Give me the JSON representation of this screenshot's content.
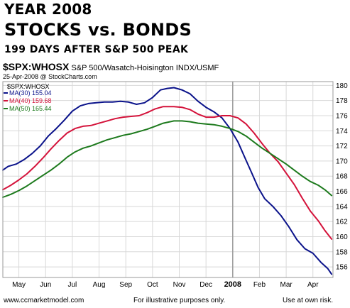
{
  "header": {
    "line1": "YEAR 2008",
    "line2": "STOCKS vs. BONDS",
    "line3": "199 DAYS AFTER S&P 500 PEAK"
  },
  "symbol_line": {
    "symbol": "$SPX:WHOSX",
    "description": "S&P 500/Wasatch-Hoisington INDX/USMF"
  },
  "date_line": "25-Apr-2008 @ StockCharts.com",
  "footer": {
    "left": "www.ccmarketmodel.com",
    "middle": "For illustrative purposes only.",
    "right": "Use at own risk."
  },
  "colors": {
    "ma30": "#0a128a",
    "ma40": "#d4123a",
    "ma50": "#1d7a1d",
    "grid": "#d8d8d8",
    "frame": "#999999"
  },
  "chart_data": {
    "type": "line",
    "legend_title": "$SPX:WHOSX",
    "legend_position": "top-left",
    "grid": true,
    "x_labels": [
      "May",
      "Jun",
      "Jul",
      "Aug",
      "Sep",
      "Oct",
      "Nov",
      "Dec",
      "2008",
      "Feb",
      "Mar",
      "Apr"
    ],
    "x_label_month_index": [
      1,
      2,
      3,
      4,
      5,
      6,
      7,
      8,
      9,
      10,
      11,
      12
    ],
    "x_range": [
      0.4,
      12.75
    ],
    "y_ticks": [
      156,
      158,
      160,
      162,
      164,
      166,
      168,
      170,
      172,
      174,
      176,
      178,
      180
    ],
    "ylim": [
      154.6,
      180.5
    ],
    "series": [
      {
        "name": "MA(30) 155.04",
        "color_key": "ma30",
        "points": [
          [
            0.4,
            168.8
          ],
          [
            0.6,
            169.3
          ],
          [
            0.9,
            169.6
          ],
          [
            1.2,
            170.2
          ],
          [
            1.5,
            171.0
          ],
          [
            1.8,
            172.0
          ],
          [
            2.1,
            173.3
          ],
          [
            2.4,
            174.3
          ],
          [
            2.7,
            175.4
          ],
          [
            3.0,
            176.6
          ],
          [
            3.3,
            177.3
          ],
          [
            3.6,
            177.6
          ],
          [
            3.9,
            177.7
          ],
          [
            4.2,
            177.8
          ],
          [
            4.5,
            177.8
          ],
          [
            4.8,
            177.9
          ],
          [
            5.1,
            177.8
          ],
          [
            5.4,
            177.5
          ],
          [
            5.7,
            177.7
          ],
          [
            6.0,
            178.4
          ],
          [
            6.3,
            179.4
          ],
          [
            6.55,
            179.6
          ],
          [
            6.8,
            179.7
          ],
          [
            7.1,
            179.4
          ],
          [
            7.4,
            178.9
          ],
          [
            7.7,
            177.9
          ],
          [
            8.0,
            177.1
          ],
          [
            8.3,
            176.5
          ],
          [
            8.6,
            175.7
          ],
          [
            8.9,
            174.3
          ],
          [
            9.2,
            172.5
          ],
          [
            9.45,
            170.5
          ],
          [
            9.7,
            168.5
          ],
          [
            9.95,
            166.5
          ],
          [
            10.2,
            165.0
          ],
          [
            10.5,
            164.0
          ],
          [
            10.8,
            162.8
          ],
          [
            11.1,
            161.3
          ],
          [
            11.4,
            159.6
          ],
          [
            11.7,
            158.4
          ],
          [
            12.0,
            157.8
          ],
          [
            12.3,
            156.6
          ],
          [
            12.55,
            155.8
          ],
          [
            12.7,
            155.04
          ]
        ]
      },
      {
        "name": "MA(40) 159.68",
        "color_key": "ma40",
        "points": [
          [
            0.4,
            166.2
          ],
          [
            0.7,
            166.8
          ],
          [
            1.0,
            167.5
          ],
          [
            1.3,
            168.3
          ],
          [
            1.6,
            169.3
          ],
          [
            1.9,
            170.4
          ],
          [
            2.2,
            171.6
          ],
          [
            2.5,
            172.7
          ],
          [
            2.8,
            173.7
          ],
          [
            3.1,
            174.3
          ],
          [
            3.4,
            174.6
          ],
          [
            3.7,
            174.7
          ],
          [
            4.0,
            175.0
          ],
          [
            4.3,
            175.3
          ],
          [
            4.6,
            175.6
          ],
          [
            4.9,
            175.8
          ],
          [
            5.2,
            175.9
          ],
          [
            5.5,
            176.0
          ],
          [
            5.8,
            176.4
          ],
          [
            6.1,
            176.9
          ],
          [
            6.4,
            177.2
          ],
          [
            6.8,
            177.2
          ],
          [
            7.1,
            177.1
          ],
          [
            7.4,
            176.8
          ],
          [
            7.7,
            176.2
          ],
          [
            8.0,
            175.8
          ],
          [
            8.3,
            175.8
          ],
          [
            8.6,
            176.0
          ],
          [
            8.9,
            176.0
          ],
          [
            9.2,
            175.7
          ],
          [
            9.5,
            174.9
          ],
          [
            9.8,
            173.7
          ],
          [
            10.1,
            172.3
          ],
          [
            10.4,
            171.0
          ],
          [
            10.7,
            169.9
          ],
          [
            11.0,
            168.4
          ],
          [
            11.3,
            166.9
          ],
          [
            11.6,
            165.1
          ],
          [
            11.9,
            163.4
          ],
          [
            12.2,
            162.1
          ],
          [
            12.45,
            160.8
          ],
          [
            12.7,
            159.68
          ]
        ]
      },
      {
        "name": "MA(50) 165.44",
        "color_key": "ma50",
        "points": [
          [
            0.4,
            165.2
          ],
          [
            0.7,
            165.6
          ],
          [
            1.0,
            166.1
          ],
          [
            1.3,
            166.7
          ],
          [
            1.6,
            167.4
          ],
          [
            1.9,
            168.1
          ],
          [
            2.2,
            168.8
          ],
          [
            2.5,
            169.6
          ],
          [
            2.8,
            170.5
          ],
          [
            3.1,
            171.2
          ],
          [
            3.4,
            171.7
          ],
          [
            3.7,
            172.0
          ],
          [
            4.0,
            172.4
          ],
          [
            4.3,
            172.8
          ],
          [
            4.6,
            173.1
          ],
          [
            4.9,
            173.4
          ],
          [
            5.2,
            173.6
          ],
          [
            5.5,
            173.9
          ],
          [
            5.8,
            174.2
          ],
          [
            6.1,
            174.6
          ],
          [
            6.4,
            175.0
          ],
          [
            6.8,
            175.3
          ],
          [
            7.1,
            175.3
          ],
          [
            7.4,
            175.2
          ],
          [
            7.7,
            175.0
          ],
          [
            8.0,
            174.9
          ],
          [
            8.3,
            174.8
          ],
          [
            8.6,
            174.6
          ],
          [
            8.9,
            174.3
          ],
          [
            9.2,
            173.9
          ],
          [
            9.5,
            173.3
          ],
          [
            9.8,
            172.5
          ],
          [
            10.1,
            171.7
          ],
          [
            10.4,
            171.0
          ],
          [
            10.7,
            170.3
          ],
          [
            11.0,
            169.6
          ],
          [
            11.3,
            168.8
          ],
          [
            11.6,
            168.0
          ],
          [
            11.9,
            167.3
          ],
          [
            12.2,
            166.8
          ],
          [
            12.45,
            166.2
          ],
          [
            12.7,
            165.44
          ]
        ]
      }
    ]
  }
}
